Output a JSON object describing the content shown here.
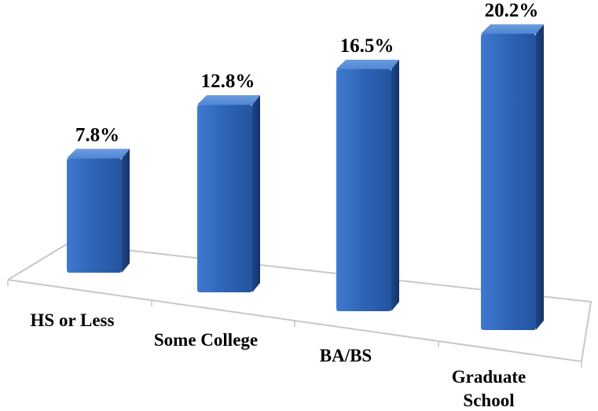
{
  "chart_data": {
    "type": "bar",
    "style": "3d-column",
    "categories": [
      "HS or Less",
      "Some College",
      "BA/BS",
      "Graduate School"
    ],
    "values": [
      7.8,
      12.8,
      16.5,
      20.2
    ],
    "data_labels": [
      "7.8%",
      "12.8%",
      "16.5%",
      "20.2%"
    ],
    "title": "",
    "xlabel": "",
    "ylabel": "",
    "ylim": [
      0,
      20.2
    ],
    "grid": false,
    "legend": "none",
    "colors": {
      "bar_front": "#2e64b6",
      "bar_side": "#1d3f7c",
      "bar_top": "#5d91d8",
      "floor_line": "#bfbfbf"
    }
  }
}
